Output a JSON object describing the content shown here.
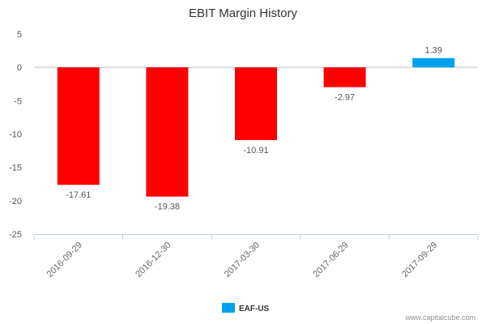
{
  "chart_data": {
    "type": "bar",
    "title": "EBIT Margin History",
    "categories": [
      "2016-09-29",
      "2016-12-30",
      "2017-03-30",
      "2017-06-29",
      "2017-09-29"
    ],
    "series": [
      {
        "name": "EAF-US",
        "values": [
          -17.61,
          -19.38,
          -10.91,
          -2.97,
          1.39
        ]
      }
    ],
    "data_labels": [
      "-17.61",
      "-19.38",
      "-10.91",
      "-2.97",
      "1.39"
    ],
    "ylim": [
      -25,
      5
    ],
    "yticks": [
      5,
      0,
      -5,
      -10,
      -15,
      -20,
      -25
    ],
    "xlabel": "",
    "ylabel": "",
    "grid": false,
    "legend": {
      "position": "bottom-center",
      "entries": [
        "EAF-US"
      ]
    },
    "colors": {
      "positive": "#00a0f0",
      "negative": "#ff0000",
      "legend": "#00a0f0",
      "axis": "#c0d0e0",
      "zero_line": "#c0c0c0"
    }
  },
  "credit": "www.capitalcube.com"
}
